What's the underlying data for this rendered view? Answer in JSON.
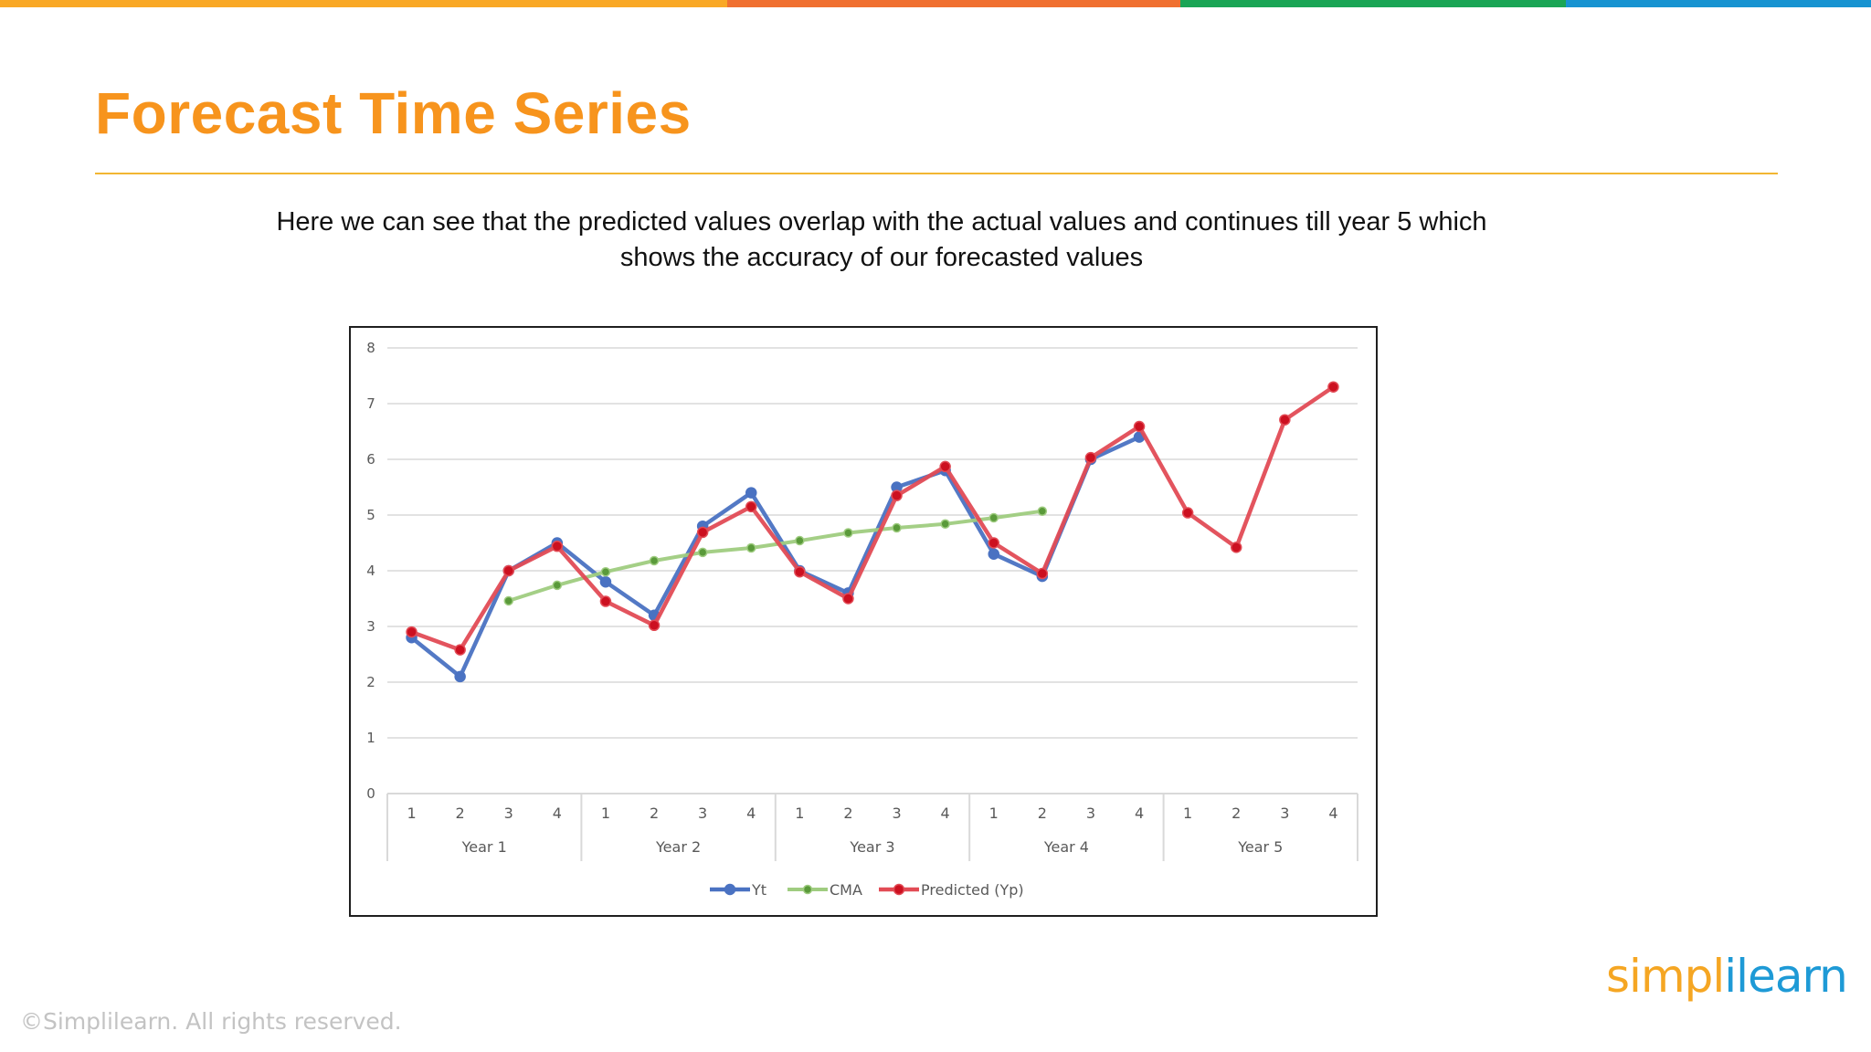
{
  "colors": {
    "accent": "#f7941d",
    "title_rule": "#f2b632",
    "bar": [
      "#f9a825",
      "#f07030",
      "#1aa555",
      "#1793d1"
    ],
    "series_yt": "#4a72c2",
    "series_cma": "#9fcc80",
    "series_cma_marker": "#5a9a3a",
    "series_pred": "#e24b55",
    "series_pred_marker": "#cc1020",
    "grid": "#d9d9d9",
    "axis_text": "#595959"
  },
  "slide": {
    "title": "Forecast Time Series",
    "description": "Here we can see that the predicted values overlap with the actual values and continues till year 5 which shows the accuracy of our forecasted values",
    "copyright": "©Simplilearn. All rights reserved.",
    "logo_part1": "simpl",
    "logo_part2": "ilearn"
  },
  "chart_data": {
    "type": "line",
    "ylim": [
      0,
      8
    ],
    "yticks": [
      0,
      1,
      2,
      3,
      4,
      5,
      6,
      7,
      8
    ],
    "grid": true,
    "legend": "bottom",
    "categories": [
      "1",
      "2",
      "3",
      "4",
      "1",
      "2",
      "3",
      "4",
      "1",
      "2",
      "3",
      "4",
      "1",
      "2",
      "3",
      "4",
      "1",
      "2",
      "3",
      "4"
    ],
    "groups": [
      {
        "label": "Year 1",
        "quarters": [
          "1",
          "2",
          "3",
          "4"
        ]
      },
      {
        "label": "Year 2",
        "quarters": [
          "1",
          "2",
          "3",
          "4"
        ]
      },
      {
        "label": "Year 3",
        "quarters": [
          "1",
          "2",
          "3",
          "4"
        ]
      },
      {
        "label": "Year 4",
        "quarters": [
          "1",
          "2",
          "3",
          "4"
        ]
      },
      {
        "label": "Year 5",
        "quarters": [
          "1",
          "2",
          "3",
          "4"
        ]
      }
    ],
    "series": [
      {
        "name": "Yt",
        "values": [
          2.8,
          2.1,
          4.0,
          4.5,
          3.8,
          3.2,
          4.8,
          5.4,
          4.0,
          3.6,
          5.5,
          5.8,
          4.3,
          3.9,
          6.0,
          6.4,
          null,
          null,
          null,
          null
        ]
      },
      {
        "name": "CMA",
        "values": [
          null,
          null,
          3.46,
          3.74,
          3.98,
          4.18,
          4.33,
          4.41,
          4.54,
          4.68,
          4.77,
          4.84,
          4.95,
          5.07,
          null,
          null,
          null,
          null,
          null,
          null
        ]
      },
      {
        "name": "Predicted (Yp)",
        "values": [
          2.9,
          2.58,
          4.0,
          4.44,
          3.45,
          3.02,
          4.69,
          5.15,
          3.98,
          3.5,
          5.35,
          5.87,
          4.5,
          3.95,
          6.03,
          6.59,
          5.04,
          4.42,
          6.71,
          7.3
        ]
      }
    ]
  }
}
